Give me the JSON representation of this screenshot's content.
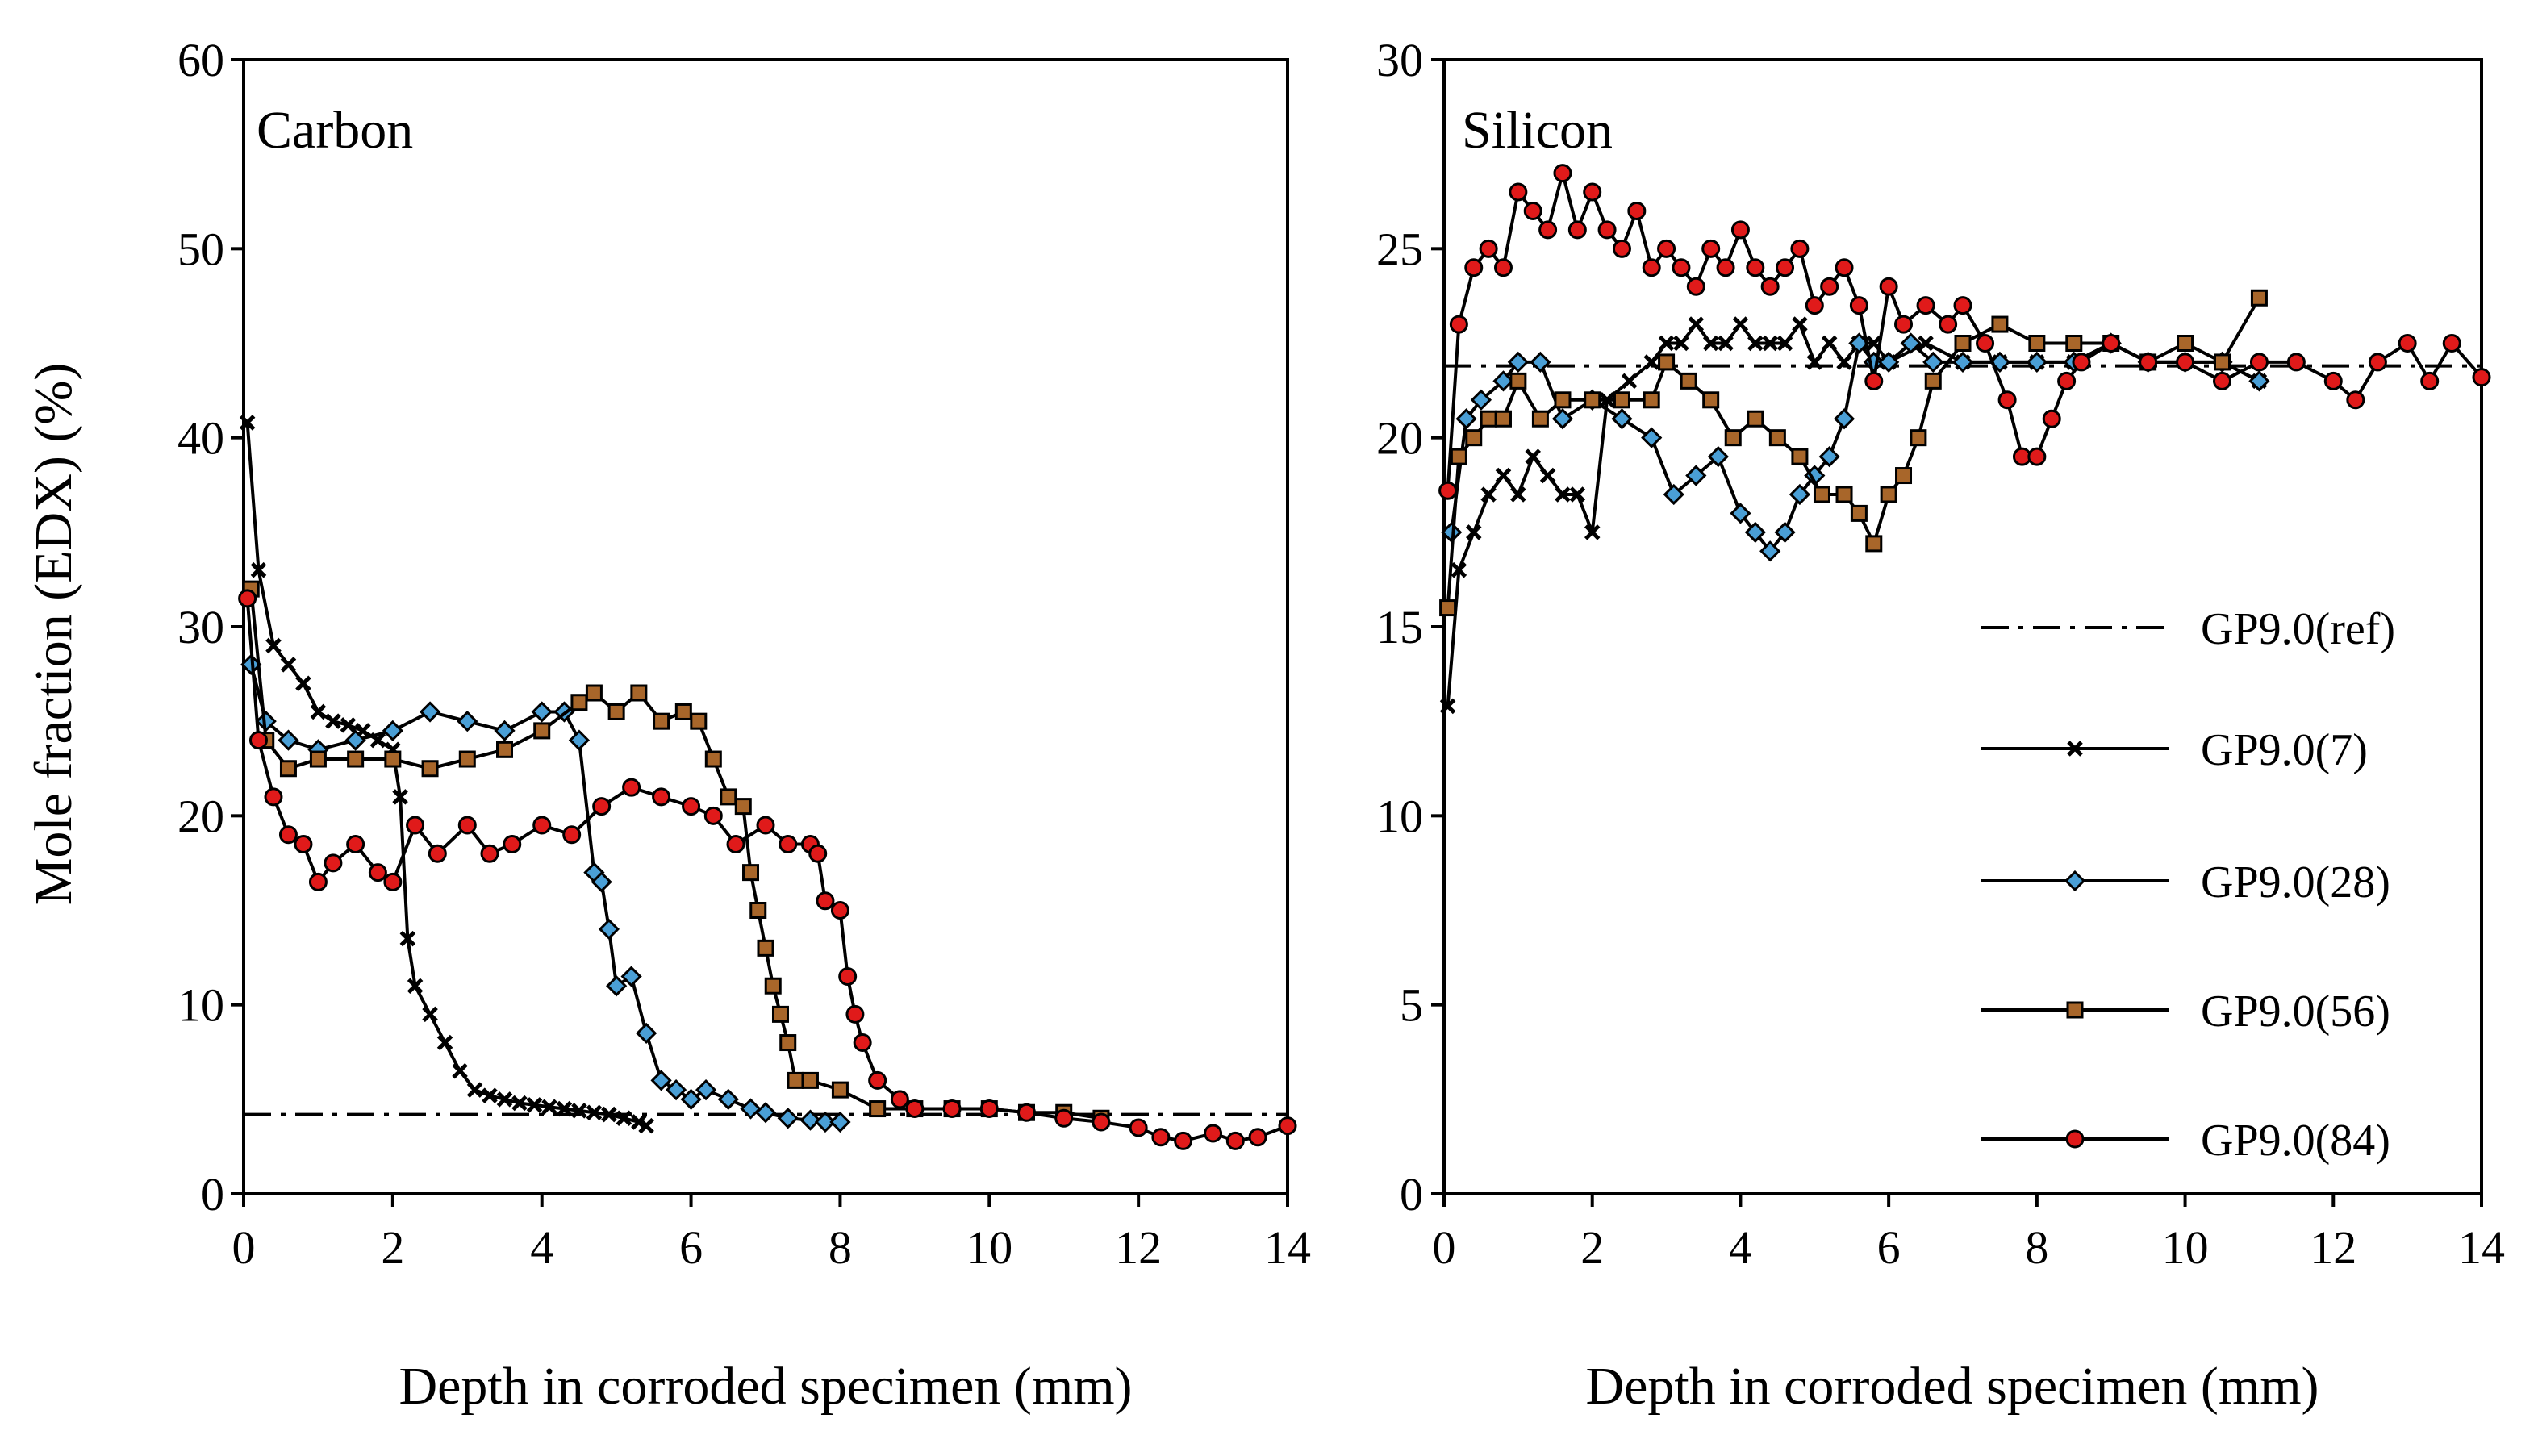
{
  "figure": {
    "ylabel": "Mole fraction (EDX) (%)",
    "xlabel": "Depth in corroded specimen (mm)"
  },
  "colors": {
    "GP9.0(ref)": "#000000",
    "GP9.0(7)": "#000000",
    "GP9.0(28)": "#4a9fd6",
    "GP9.0(56)": "#a8662a",
    "GP9.0(84)": "#e01a1a"
  },
  "legend": {
    "items": [
      {
        "name": "GP9.0(ref)",
        "marker": "none",
        "dash": "dashdot"
      },
      {
        "name": "GP9.0(7)",
        "marker": "x",
        "dash": "solid"
      },
      {
        "name": "GP9.0(28)",
        "marker": "diamond",
        "dash": "solid"
      },
      {
        "name": "GP9.0(56)",
        "marker": "square",
        "dash": "solid"
      },
      {
        "name": "GP9.0(84)",
        "marker": "circle",
        "dash": "solid"
      }
    ]
  },
  "chart_data": [
    {
      "type": "line",
      "title": "Carbon",
      "xlabel": "Depth in corroded specimen (mm)",
      "ylabel": "Mole fraction (EDX) (%)",
      "xlim": [
        0,
        14
      ],
      "ylim": [
        0,
        60
      ],
      "xticks": [
        "0",
        "2",
        "4",
        "6",
        "8",
        "10",
        "12",
        "14"
      ],
      "yticks": [
        "0",
        "10",
        "20",
        "30",
        "40",
        "50",
        "60"
      ],
      "series": [
        {
          "name": "GP9.0(ref)",
          "x": [
            0,
            14
          ],
          "y": [
            4.2,
            4.2
          ]
        },
        {
          "name": "GP9.0(7)",
          "x": [
            0.05,
            0.2,
            0.4,
            0.6,
            0.8,
            1.0,
            1.2,
            1.4,
            1.6,
            1.8,
            2.0,
            2.1,
            2.2,
            2.3,
            2.5,
            2.7,
            2.9,
            3.1,
            3.3,
            3.5,
            3.7,
            3.9,
            4.1,
            4.3,
            4.5,
            4.7,
            4.9,
            5.1,
            5.3,
            5.4
          ],
          "y": [
            40.8,
            33.0,
            29.0,
            28.0,
            27.0,
            25.5,
            25.0,
            24.8,
            24.5,
            24.0,
            23.5,
            21.0,
            13.5,
            11.0,
            9.5,
            8.0,
            6.5,
            5.5,
            5.2,
            5.0,
            4.8,
            4.7,
            4.6,
            4.5,
            4.4,
            4.3,
            4.2,
            4.0,
            3.8,
            3.6
          ]
        },
        {
          "name": "GP9.0(28)",
          "x": [
            0.1,
            0.3,
            0.6,
            1.0,
            1.5,
            2.0,
            2.5,
            3.0,
            3.5,
            4.0,
            4.3,
            4.5,
            4.7,
            4.8,
            4.9,
            5.0,
            5.2,
            5.4,
            5.6,
            5.8,
            6.0,
            6.2,
            6.5,
            6.8,
            7.0,
            7.3,
            7.6,
            7.8,
            8.0
          ],
          "y": [
            28.0,
            25.0,
            24.0,
            23.5,
            24.0,
            24.5,
            25.5,
            25.0,
            24.5,
            25.5,
            25.5,
            24.0,
            17.0,
            16.5,
            14.0,
            11.0,
            11.5,
            8.5,
            6.0,
            5.5,
            5.0,
            5.5,
            5.0,
            4.5,
            4.3,
            4.0,
            3.9,
            3.8,
            3.8
          ]
        },
        {
          "name": "GP9.0(56)",
          "x": [
            0.1,
            0.3,
            0.6,
            1.0,
            1.5,
            2.0,
            2.5,
            3.0,
            3.5,
            4.0,
            4.5,
            4.7,
            5.0,
            5.3,
            5.6,
            5.9,
            6.1,
            6.3,
            6.5,
            6.7,
            6.8,
            6.9,
            7.0,
            7.1,
            7.2,
            7.3,
            7.4,
            7.6,
            8.0,
            8.5,
            9.0,
            9.5,
            10.0,
            10.5,
            11.0,
            11.5
          ],
          "y": [
            32.0,
            24.0,
            22.5,
            23.0,
            23.0,
            23.0,
            22.5,
            23.0,
            23.5,
            24.5,
            26.0,
            26.5,
            25.5,
            26.5,
            25.0,
            25.5,
            25.0,
            23.0,
            21.0,
            20.5,
            17.0,
            15.0,
            13.0,
            11.0,
            9.5,
            8.0,
            6.0,
            6.0,
            5.5,
            4.5,
            4.5,
            4.5,
            4.5,
            4.3,
            4.3,
            4.0
          ]
        },
        {
          "name": "GP9.0(84)",
          "x": [
            0.05,
            0.2,
            0.4,
            0.6,
            0.8,
            1.0,
            1.2,
            1.5,
            1.8,
            2.0,
            2.3,
            2.6,
            3.0,
            3.3,
            3.6,
            4.0,
            4.4,
            4.8,
            5.2,
            5.6,
            6.0,
            6.3,
            6.6,
            7.0,
            7.3,
            7.6,
            7.7,
            7.8,
            8.0,
            8.1,
            8.2,
            8.3,
            8.5,
            8.8,
            9.0,
            9.5,
            10.0,
            10.5,
            11.0,
            11.5,
            12.0,
            12.3,
            12.6,
            13.0,
            13.3,
            13.6,
            14.0
          ],
          "y": [
            31.5,
            24.0,
            21.0,
            19.0,
            18.5,
            16.5,
            17.5,
            18.5,
            17.0,
            16.5,
            19.5,
            18.0,
            19.5,
            18.0,
            18.5,
            19.5,
            19.0,
            20.5,
            21.5,
            21.0,
            20.5,
            20.0,
            18.5,
            19.5,
            18.5,
            18.5,
            18.0,
            15.5,
            15.0,
            11.5,
            9.5,
            8.0,
            6.0,
            5.0,
            4.5,
            4.5,
            4.5,
            4.3,
            4.0,
            3.8,
            3.5,
            3.0,
            2.8,
            3.2,
            2.8,
            3.0,
            3.6
          ]
        }
      ]
    },
    {
      "type": "line",
      "title": "Silicon",
      "xlabel": "Depth in corroded specimen (mm)",
      "ylabel": "",
      "xlim": [
        0,
        14
      ],
      "ylim": [
        0,
        30
      ],
      "xticks": [
        "0",
        "2",
        "4",
        "6",
        "8",
        "10",
        "12",
        "14"
      ],
      "yticks": [
        "0",
        "5",
        "10",
        "15",
        "20",
        "25",
        "30"
      ],
      "series": [
        {
          "name": "GP9.0(ref)",
          "x": [
            0,
            14
          ],
          "y": [
            21.9,
            21.9
          ]
        },
        {
          "name": "GP9.0(7)",
          "x": [
            0.05,
            0.2,
            0.4,
            0.6,
            0.8,
            1.0,
            1.2,
            1.4,
            1.6,
            1.8,
            2.0,
            2.2,
            2.5,
            2.8,
            3.0,
            3.2,
            3.4,
            3.6,
            3.8,
            4.0,
            4.2,
            4.4,
            4.6,
            4.8,
            5.0,
            5.2,
            5.4,
            5.6,
            5.8,
            6.0,
            6.5,
            7.0,
            7.5,
            8.0,
            8.5,
            9.0,
            9.5,
            10.0,
            10.5,
            11.0
          ],
          "y": [
            12.9,
            16.5,
            17.5,
            18.5,
            19.0,
            18.5,
            19.5,
            19.0,
            18.5,
            18.5,
            17.5,
            21.0,
            21.5,
            22.0,
            22.5,
            22.5,
            23.0,
            22.5,
            22.5,
            23.0,
            22.5,
            22.5,
            22.5,
            23.0,
            22.0,
            22.5,
            22.0,
            22.5,
            22.5,
            22.0,
            22.5,
            22.0,
            22.0,
            22.0,
            22.0,
            22.5,
            22.0,
            22.0,
            22.0,
            21.5
          ]
        },
        {
          "name": "GP9.0(28)",
          "x": [
            0.1,
            0.3,
            0.5,
            0.8,
            1.0,
            1.3,
            1.6,
            2.0,
            2.4,
            2.8,
            3.1,
            3.4,
            3.7,
            4.0,
            4.2,
            4.4,
            4.6,
            4.8,
            5.0,
            5.2,
            5.4,
            5.6,
            5.8,
            6.0,
            6.3,
            6.6,
            7.0,
            7.5,
            8.0,
            8.5,
            9.0,
            9.5,
            10.0,
            10.5,
            11.0
          ],
          "y": [
            17.5,
            20.5,
            21.0,
            21.5,
            22.0,
            22.0,
            20.5,
            21.0,
            20.5,
            20.0,
            18.5,
            19.0,
            19.5,
            18.0,
            17.5,
            17.0,
            17.5,
            18.5,
            19.0,
            19.5,
            20.5,
            22.5,
            22.0,
            22.0,
            22.5,
            22.0,
            22.0,
            22.0,
            22.0,
            22.0,
            22.5,
            22.0,
            22.0,
            22.0,
            21.5
          ]
        },
        {
          "name": "GP9.0(56)",
          "x": [
            0.05,
            0.2,
            0.4,
            0.6,
            0.8,
            1.0,
            1.3,
            1.6,
            2.0,
            2.4,
            2.8,
            3.0,
            3.3,
            3.6,
            3.9,
            4.2,
            4.5,
            4.8,
            5.1,
            5.4,
            5.6,
            5.8,
            6.0,
            6.2,
            6.4,
            6.6,
            7.0,
            7.5,
            8.0,
            8.5,
            9.0,
            9.5,
            10.0,
            10.5,
            11.0
          ],
          "y": [
            15.5,
            19.5,
            20.0,
            20.5,
            20.5,
            21.5,
            20.5,
            21.0,
            21.0,
            21.0,
            21.0,
            22.0,
            21.5,
            21.0,
            20.0,
            20.5,
            20.0,
            19.5,
            18.5,
            18.5,
            18.0,
            17.2,
            18.5,
            19.0,
            20.0,
            21.5,
            22.5,
            23.0,
            22.5,
            22.5,
            22.5,
            22.0,
            22.5,
            22.0,
            23.7
          ]
        },
        {
          "name": "GP9.0(84)",
          "x": [
            0.05,
            0.2,
            0.4,
            0.6,
            0.8,
            1.0,
            1.2,
            1.4,
            1.6,
            1.8,
            2.0,
            2.2,
            2.4,
            2.6,
            2.8,
            3.0,
            3.2,
            3.4,
            3.6,
            3.8,
            4.0,
            4.2,
            4.4,
            4.6,
            4.8,
            5.0,
            5.2,
            5.4,
            5.6,
            5.8,
            6.0,
            6.2,
            6.5,
            6.8,
            7.0,
            7.3,
            7.6,
            7.8,
            8.0,
            8.2,
            8.4,
            8.6,
            9.0,
            9.5,
            10.0,
            10.5,
            11.0,
            11.5,
            12.0,
            12.3,
            12.6,
            13.0,
            13.3,
            13.6,
            14.0
          ],
          "y": [
            18.6,
            23.0,
            24.5,
            25.0,
            24.5,
            26.5,
            26.0,
            25.5,
            27.0,
            25.5,
            26.5,
            25.5,
            25.0,
            26.0,
            24.5,
            25.0,
            24.5,
            24.0,
            25.0,
            24.5,
            25.5,
            24.5,
            24.0,
            24.5,
            25.0,
            23.5,
            24.0,
            24.5,
            23.5,
            21.5,
            24.0,
            23.0,
            23.5,
            23.0,
            23.5,
            22.5,
            21.0,
            19.5,
            19.5,
            20.5,
            21.5,
            22.0,
            22.5,
            22.0,
            22.0,
            21.5,
            22.0,
            22.0,
            21.5,
            21.0,
            22.0,
            22.5,
            21.5,
            22.5,
            21.6
          ]
        }
      ]
    }
  ]
}
